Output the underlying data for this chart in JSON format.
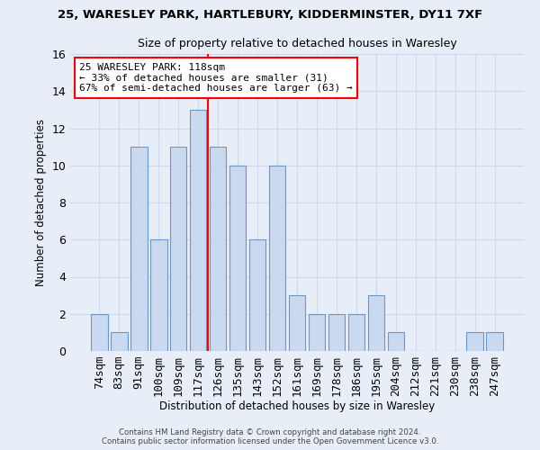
{
  "title1": "25, WARESLEY PARK, HARTLEBURY, KIDDERMINSTER, DY11 7XF",
  "title2": "Size of property relative to detached houses in Waresley",
  "xlabel": "Distribution of detached houses by size in Waresley",
  "ylabel": "Number of detached properties",
  "footnote1": "Contains HM Land Registry data © Crown copyright and database right 2024.",
  "footnote2": "Contains public sector information licensed under the Open Government Licence v3.0.",
  "bin_labels": [
    "74sqm",
    "83sqm",
    "91sqm",
    "100sqm",
    "109sqm",
    "117sqm",
    "126sqm",
    "135sqm",
    "143sqm",
    "152sqm",
    "161sqm",
    "169sqm",
    "178sqm",
    "186sqm",
    "195sqm",
    "204sqm",
    "212sqm",
    "221sqm",
    "230sqm",
    "238sqm",
    "247sqm"
  ],
  "bar_heights": [
    2,
    1,
    11,
    6,
    11,
    13,
    11,
    10,
    6,
    10,
    3,
    2,
    2,
    2,
    3,
    1,
    0,
    0,
    0,
    1,
    1
  ],
  "bar_color": "#c9d9f0",
  "bar_edge_color": "#6699cc",
  "vline_x": 5.5,
  "vline_color": "red",
  "annotation_text": "25 WARESLEY PARK: 118sqm\n← 33% of detached houses are smaller (31)\n67% of semi-detached houses are larger (63) →",
  "annotation_box_color": "white",
  "annotation_box_edge": "red",
  "ylim": [
    0,
    16
  ],
  "yticks": [
    0,
    2,
    4,
    6,
    8,
    10,
    12,
    14,
    16
  ],
  "grid_color": "#d0d8ea",
  "background_color": "#e8eef8",
  "axes_background": "#e8eef8"
}
